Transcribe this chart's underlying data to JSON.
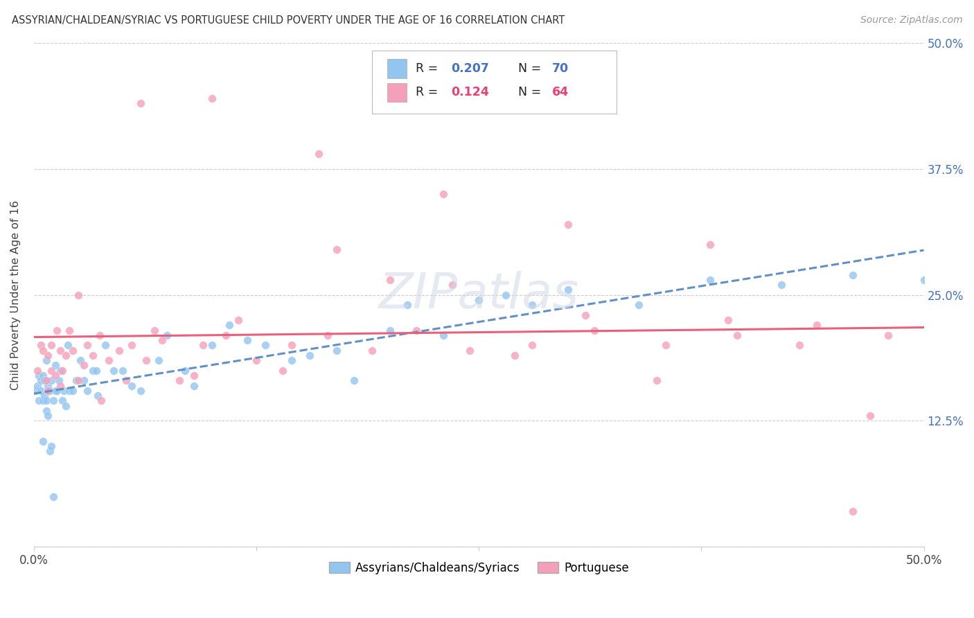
{
  "title": "ASSYRIAN/CHALDEAN/SYRIAC VS PORTUGUESE CHILD POVERTY UNDER THE AGE OF 16 CORRELATION CHART",
  "source": "Source: ZipAtlas.com",
  "ylabel": "Child Poverty Under the Age of 16",
  "xlim": [
    0.0,
    0.5
  ],
  "ylim": [
    0.0,
    0.5
  ],
  "xticks": [
    0.0,
    0.125,
    0.25,
    0.375,
    0.5
  ],
  "yticks": [
    0.0,
    0.125,
    0.25,
    0.375,
    0.5
  ],
  "legend_r1": "0.207",
  "legend_n1": "70",
  "legend_r2": "0.124",
  "legend_n2": "64",
  "color_blue": "#92C5F0",
  "color_pink": "#F4A0BA",
  "color_blue_line": "#6090C8",
  "color_pink_line": "#E8607A",
  "color_blue_text": "#4472C4",
  "color_pink_text": "#E84070",
  "watermark": "ZIPatlas",
  "background_color": "#FFFFFF",
  "assyrian_x": [
    0.001,
    0.002,
    0.003,
    0.003,
    0.004,
    0.004,
    0.005,
    0.005,
    0.005,
    0.006,
    0.006,
    0.007,
    0.007,
    0.007,
    0.008,
    0.008,
    0.008,
    0.009,
    0.009,
    0.01,
    0.01,
    0.011,
    0.011,
    0.012,
    0.012,
    0.013,
    0.014,
    0.015,
    0.016,
    0.017,
    0.018,
    0.019,
    0.02,
    0.022,
    0.024,
    0.026,
    0.028,
    0.03,
    0.033,
    0.036,
    0.04,
    0.045,
    0.05,
    0.06,
    0.07,
    0.085,
    0.1,
    0.12,
    0.145,
    0.17,
    0.2,
    0.23,
    0.265,
    0.3,
    0.34,
    0.38,
    0.42,
    0.46,
    0.5,
    0.035,
    0.055,
    0.075,
    0.09,
    0.11,
    0.13,
    0.155,
    0.18,
    0.21,
    0.25,
    0.28
  ],
  "assyrian_y": [
    0.155,
    0.16,
    0.17,
    0.145,
    0.155,
    0.165,
    0.105,
    0.145,
    0.17,
    0.15,
    0.165,
    0.135,
    0.145,
    0.185,
    0.13,
    0.155,
    0.16,
    0.095,
    0.155,
    0.1,
    0.165,
    0.05,
    0.145,
    0.155,
    0.18,
    0.155,
    0.165,
    0.175,
    0.145,
    0.155,
    0.14,
    0.2,
    0.155,
    0.155,
    0.165,
    0.185,
    0.165,
    0.155,
    0.175,
    0.15,
    0.2,
    0.175,
    0.175,
    0.155,
    0.185,
    0.175,
    0.2,
    0.205,
    0.185,
    0.195,
    0.215,
    0.21,
    0.25,
    0.255,
    0.24,
    0.265,
    0.26,
    0.27,
    0.265,
    0.175,
    0.16,
    0.21,
    0.16,
    0.22,
    0.2,
    0.19,
    0.165,
    0.24,
    0.245,
    0.24
  ],
  "portuguese_x": [
    0.002,
    0.004,
    0.005,
    0.007,
    0.008,
    0.01,
    0.01,
    0.012,
    0.013,
    0.015,
    0.016,
    0.018,
    0.02,
    0.022,
    0.025,
    0.028,
    0.03,
    0.033,
    0.037,
    0.042,
    0.048,
    0.055,
    0.063,
    0.072,
    0.082,
    0.095,
    0.108,
    0.125,
    0.145,
    0.165,
    0.19,
    0.215,
    0.245,
    0.28,
    0.315,
    0.355,
    0.395,
    0.44,
    0.48,
    0.008,
    0.015,
    0.025,
    0.038,
    0.052,
    0.068,
    0.09,
    0.115,
    0.14,
    0.17,
    0.2,
    0.235,
    0.27,
    0.31,
    0.35,
    0.39,
    0.43,
    0.47,
    0.06,
    0.1,
    0.16,
    0.23,
    0.3,
    0.38,
    0.46
  ],
  "portuguese_y": [
    0.175,
    0.2,
    0.195,
    0.165,
    0.19,
    0.175,
    0.2,
    0.17,
    0.215,
    0.195,
    0.175,
    0.19,
    0.215,
    0.195,
    0.165,
    0.18,
    0.2,
    0.19,
    0.21,
    0.185,
    0.195,
    0.2,
    0.185,
    0.205,
    0.165,
    0.2,
    0.21,
    0.185,
    0.2,
    0.21,
    0.195,
    0.215,
    0.195,
    0.2,
    0.215,
    0.2,
    0.21,
    0.22,
    0.21,
    0.155,
    0.16,
    0.25,
    0.145,
    0.165,
    0.215,
    0.17,
    0.225,
    0.175,
    0.295,
    0.265,
    0.26,
    0.19,
    0.23,
    0.165,
    0.225,
    0.2,
    0.13,
    0.44,
    0.445,
    0.39,
    0.35,
    0.32,
    0.3,
    0.035
  ]
}
